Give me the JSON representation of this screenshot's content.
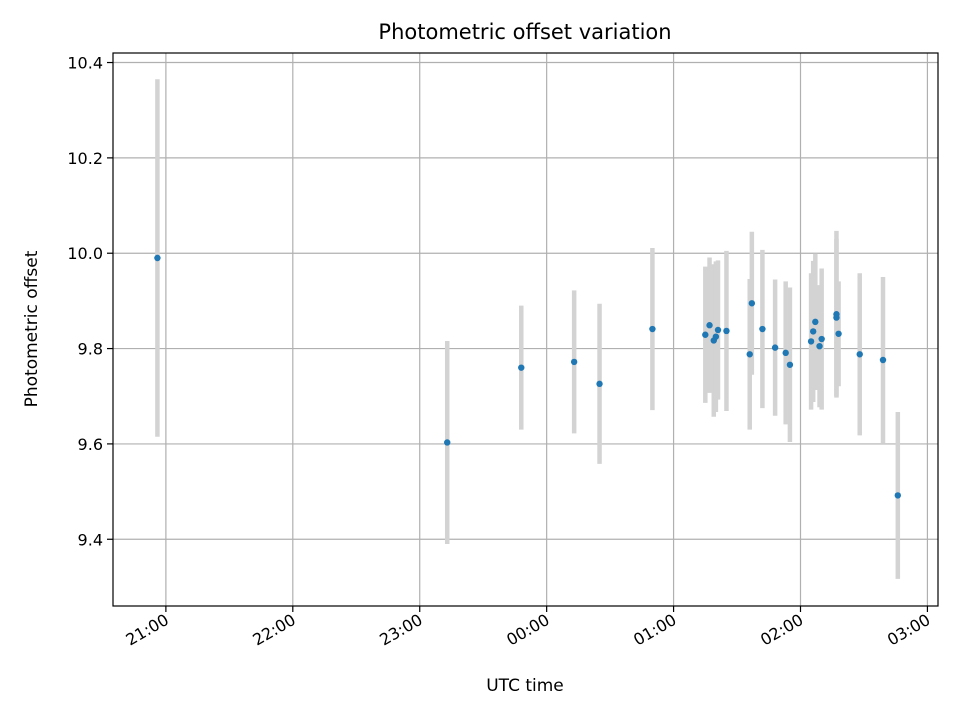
{
  "chart_data": {
    "type": "scatter",
    "title": "Photometric offset variation",
    "xlabel": "UTC time",
    "ylabel": "Photometric offset",
    "x_axis": {
      "scale": "time",
      "range": [
        "20:35",
        "03:05"
      ],
      "ticks": [
        "21:00",
        "22:00",
        "23:00",
        "00:00",
        "01:00",
        "02:00",
        "03:00"
      ]
    },
    "y_axis": {
      "range": [
        9.26,
        10.42
      ],
      "ticks": [
        9.4,
        9.6,
        9.8,
        10.0,
        10.2,
        10.4
      ],
      "tick_labels": [
        "9.4",
        "9.6",
        "9.8",
        "10.0",
        "10.2",
        "10.4"
      ]
    },
    "grid": true,
    "colors": {
      "point": "#1f77b4",
      "errorbar": "#d3d3d3",
      "grid": "#b0b0b0"
    },
    "series": [
      {
        "points": [
          {
            "x": "20:56",
            "y": 9.99,
            "yerr": 0.375
          },
          {
            "x": "23:13",
            "y": 9.603,
            "yerr": 0.213
          },
          {
            "x": "23:48",
            "y": 9.76,
            "yerr": 0.13
          },
          {
            "x": "00:13",
            "y": 9.772,
            "yerr": 0.15
          },
          {
            "x": "00:25",
            "y": 9.726,
            "yerr": 0.168
          },
          {
            "x": "00:50",
            "y": 9.841,
            "yerr": 0.17
          },
          {
            "x": "01:15",
            "y": 9.829,
            "yerr": 0.143
          },
          {
            "x": "01:17",
            "y": 9.849,
            "yerr": 0.142
          },
          {
            "x": "01:19",
            "y": 9.817,
            "yerr": 0.16
          },
          {
            "x": "01:20",
            "y": 9.825,
            "yerr": 0.158
          },
          {
            "x": "01:21",
            "y": 9.839,
            "yerr": 0.146
          },
          {
            "x": "01:25",
            "y": 9.837,
            "yerr": 0.168
          },
          {
            "x": "01:36",
            "y": 9.788,
            "yerr": 0.158
          },
          {
            "x": "01:37",
            "y": 9.895,
            "yerr": 0.15
          },
          {
            "x": "01:42",
            "y": 9.841,
            "yerr": 0.166
          },
          {
            "x": "01:48",
            "y": 9.802,
            "yerr": 0.143
          },
          {
            "x": "01:53",
            "y": 9.791,
            "yerr": 0.15
          },
          {
            "x": "01:55",
            "y": 9.766,
            "yerr": 0.162
          },
          {
            "x": "02:05",
            "y": 9.815,
            "yerr": 0.143
          },
          {
            "x": "02:06",
            "y": 9.836,
            "yerr": 0.148
          },
          {
            "x": "02:07",
            "y": 9.856,
            "yerr": 0.143
          },
          {
            "x": "02:09",
            "y": 9.805,
            "yerr": 0.128
          },
          {
            "x": "02:10",
            "y": 9.82,
            "yerr": 0.148
          },
          {
            "x": "02:17",
            "y": 9.865,
            "yerr": 0.165
          },
          {
            "x": "02:17",
            "y": 9.872,
            "yerr": 0.175
          },
          {
            "x": "02:18",
            "y": 9.831,
            "yerr": 0.11
          },
          {
            "x": "02:28",
            "y": 9.788,
            "yerr": 0.17
          },
          {
            "x": "02:39",
            "y": 9.776,
            "yerr": 0.174
          },
          {
            "x": "02:46",
            "y": 9.492,
            "yerr": 0.175
          }
        ]
      }
    ]
  }
}
